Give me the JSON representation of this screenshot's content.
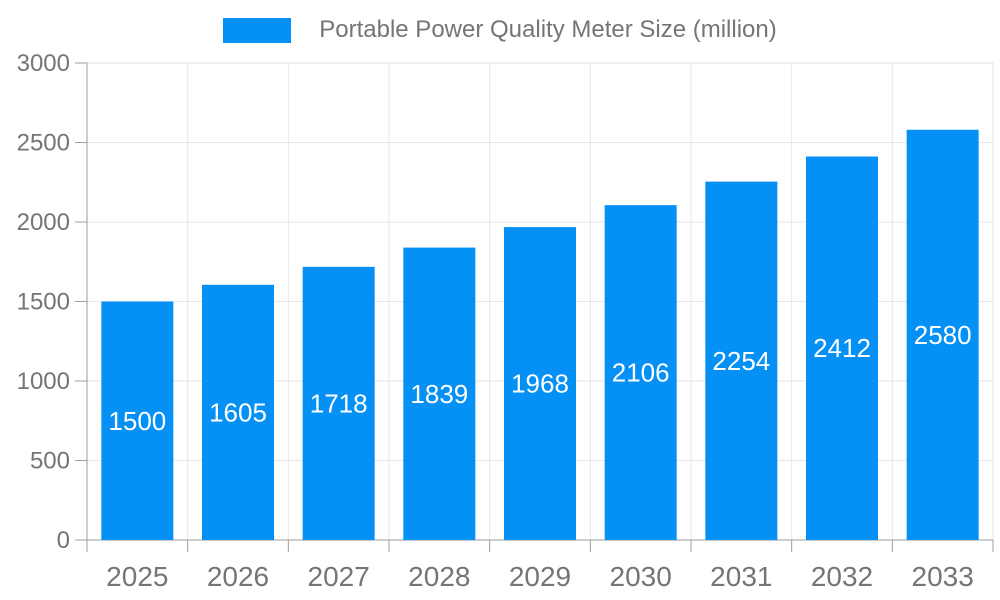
{
  "legend": {
    "label": "Portable Power Quality Meter Size (million)"
  },
  "colors": {
    "bar": "#0590f5",
    "grid": "#e6e6e6",
    "axis": "#9e9e9e",
    "axis_text": "#757575",
    "value_label_text": "#ffffff",
    "background": "#ffffff"
  },
  "chart_data": {
    "type": "bar",
    "title": "Portable Power Quality Meter Size (million)",
    "series": [
      {
        "name": "Portable Power Quality Meter Size (million)",
        "values": [
          1500,
          1605,
          1718,
          1839,
          1968,
          2106,
          2254,
          2412,
          2580
        ]
      }
    ],
    "categories": [
      "2025",
      "2026",
      "2027",
      "2028",
      "2029",
      "2030",
      "2031",
      "2032",
      "2033"
    ],
    "values": [
      1500,
      1605,
      1718,
      1839,
      1968,
      2106,
      2254,
      2412,
      2580
    ],
    "xlabel": "",
    "ylabel": "",
    "ylim": [
      0,
      3000
    ],
    "yticks": [
      0,
      500,
      1000,
      1500,
      2000,
      2500,
      3000
    ],
    "grid": true,
    "legend_position": "top-center",
    "value_labels_position": "inside-center"
  }
}
